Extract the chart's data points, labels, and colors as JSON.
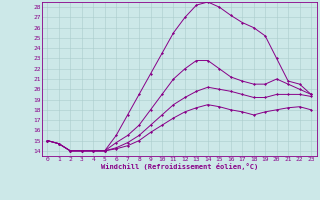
{
  "xlabel": "Windchill (Refroidissement éolien,°C)",
  "xlim": [
    -0.5,
    23.5
  ],
  "ylim": [
    13.5,
    28.5
  ],
  "xticks": [
    0,
    1,
    2,
    3,
    4,
    5,
    6,
    7,
    8,
    9,
    10,
    11,
    12,
    13,
    14,
    15,
    16,
    17,
    18,
    19,
    20,
    21,
    22,
    23
  ],
  "yticks": [
    14,
    15,
    16,
    17,
    18,
    19,
    20,
    21,
    22,
    23,
    24,
    25,
    26,
    27,
    28
  ],
  "bg_color": "#cce8e8",
  "line_color": "#880088",
  "grid_color": "#aacccc",
  "lines": [
    {
      "x": [
        0,
        1,
        2,
        3,
        4,
        5,
        6,
        7,
        8,
        9,
        10,
        11,
        12,
        13,
        14,
        15,
        16,
        17,
        18,
        19,
        20,
        21,
        22,
        23
      ],
      "y": [
        15.0,
        14.7,
        14.0,
        14.0,
        14.0,
        14.0,
        15.5,
        17.5,
        19.5,
        21.5,
        23.5,
        25.5,
        27.0,
        28.2,
        28.5,
        28.0,
        27.2,
        26.5,
        26.0,
        25.2,
        23.0,
        20.8,
        20.5,
        19.5
      ]
    },
    {
      "x": [
        0,
        1,
        2,
        3,
        4,
        5,
        6,
        7,
        8,
        9,
        10,
        11,
        12,
        13,
        14,
        15,
        16,
        17,
        18,
        19,
        20,
        21,
        22,
        23
      ],
      "y": [
        15.0,
        14.7,
        14.0,
        14.0,
        14.0,
        14.0,
        14.8,
        15.5,
        16.5,
        18.0,
        19.5,
        21.0,
        22.0,
        22.8,
        22.8,
        22.0,
        21.2,
        20.8,
        20.5,
        20.5,
        21.0,
        20.5,
        20.0,
        19.5
      ]
    },
    {
      "x": [
        0,
        1,
        2,
        3,
        4,
        5,
        6,
        7,
        8,
        9,
        10,
        11,
        12,
        13,
        14,
        15,
        16,
        17,
        18,
        19,
        20,
        21,
        22,
        23
      ],
      "y": [
        15.0,
        14.7,
        14.0,
        14.0,
        14.0,
        14.0,
        14.3,
        14.8,
        15.5,
        16.5,
        17.5,
        18.5,
        19.2,
        19.8,
        20.2,
        20.0,
        19.8,
        19.5,
        19.2,
        19.2,
        19.5,
        19.5,
        19.5,
        19.3
      ]
    },
    {
      "x": [
        0,
        1,
        2,
        3,
        4,
        5,
        6,
        7,
        8,
        9,
        10,
        11,
        12,
        13,
        14,
        15,
        16,
        17,
        18,
        19,
        20,
        21,
        22,
        23
      ],
      "y": [
        15.0,
        14.7,
        14.0,
        14.0,
        14.0,
        14.0,
        14.2,
        14.5,
        15.0,
        15.8,
        16.5,
        17.2,
        17.8,
        18.2,
        18.5,
        18.3,
        18.0,
        17.8,
        17.5,
        17.8,
        18.0,
        18.2,
        18.3,
        18.0
      ]
    }
  ]
}
